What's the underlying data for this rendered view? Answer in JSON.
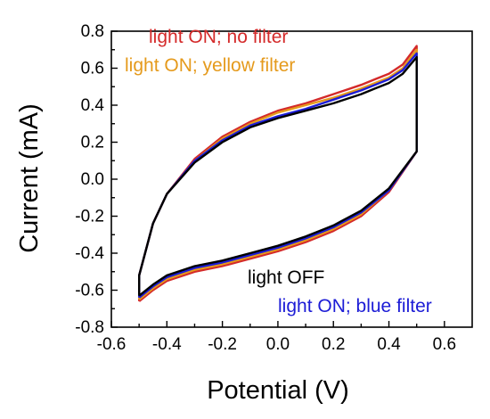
{
  "chart_data": {
    "type": "line",
    "title": "",
    "xlabel": "Potential (V)",
    "ylabel": "Current (mA)",
    "xlim": [
      -0.6,
      0.7
    ],
    "ylim": [
      -0.8,
      0.8
    ],
    "x_ticks": [
      "-0.6",
      "-0.4",
      "-0.2",
      "0.0",
      "0.2",
      "0.4",
      "0.6"
    ],
    "y_ticks": [
      "-0.8",
      "-0.6",
      "-0.4",
      "-0.2",
      "0.0",
      "0.2",
      "0.4",
      "0.6",
      "0.8"
    ],
    "grid": false,
    "series": [
      {
        "name": "light ON; no filter",
        "color": "#d42a2a",
        "x": [
          -0.5,
          -0.45,
          -0.4,
          -0.3,
          -0.2,
          -0.1,
          0.0,
          0.1,
          0.2,
          0.3,
          0.4,
          0.5,
          0.5,
          0.45,
          0.4,
          0.35,
          0.3,
          0.2,
          0.1,
          0.0,
          -0.1,
          -0.2,
          -0.3,
          -0.4,
          -0.45,
          -0.5,
          -0.5
        ],
        "y": [
          -0.66,
          -0.6,
          -0.55,
          -0.5,
          -0.47,
          -0.43,
          -0.39,
          -0.34,
          -0.28,
          -0.2,
          -0.07,
          0.15,
          0.72,
          0.62,
          0.57,
          0.54,
          0.51,
          0.46,
          0.41,
          0.37,
          0.31,
          0.23,
          0.11,
          -0.08,
          -0.24,
          -0.52,
          -0.66
        ]
      },
      {
        "name": "light ON; yellow filter",
        "color": "#e59a1c",
        "x": [
          -0.5,
          -0.45,
          -0.4,
          -0.3,
          -0.2,
          -0.1,
          0.0,
          0.1,
          0.2,
          0.3,
          0.4,
          0.5,
          0.5,
          0.45,
          0.4,
          0.35,
          0.3,
          0.2,
          0.1,
          0.0,
          -0.1,
          -0.2,
          -0.3,
          -0.4,
          -0.45,
          -0.5,
          -0.5
        ],
        "y": [
          -0.65,
          -0.59,
          -0.54,
          -0.49,
          -0.46,
          -0.42,
          -0.38,
          -0.33,
          -0.27,
          -0.19,
          -0.06,
          0.15,
          0.7,
          0.6,
          0.55,
          0.52,
          0.49,
          0.44,
          0.4,
          0.36,
          0.3,
          0.22,
          0.1,
          -0.08,
          -0.24,
          -0.52,
          -0.65
        ]
      },
      {
        "name": "light ON; blue filter",
        "color": "#1c1cd6",
        "x": [
          -0.5,
          -0.45,
          -0.4,
          -0.3,
          -0.2,
          -0.1,
          0.0,
          0.1,
          0.2,
          0.3,
          0.4,
          0.5,
          0.5,
          0.45,
          0.4,
          0.35,
          0.3,
          0.2,
          0.1,
          0.0,
          -0.1,
          -0.2,
          -0.3,
          -0.4,
          -0.45,
          -0.5,
          -0.5
        ],
        "y": [
          -0.64,
          -0.58,
          -0.53,
          -0.48,
          -0.45,
          -0.41,
          -0.37,
          -0.32,
          -0.26,
          -0.18,
          -0.06,
          0.15,
          0.68,
          0.59,
          0.54,
          0.51,
          0.48,
          0.43,
          0.38,
          0.34,
          0.29,
          0.21,
          0.1,
          -0.08,
          -0.24,
          -0.52,
          -0.64
        ]
      },
      {
        "name": "light OFF",
        "color": "#000000",
        "x": [
          -0.5,
          -0.45,
          -0.4,
          -0.3,
          -0.2,
          -0.1,
          0.0,
          0.1,
          0.2,
          0.3,
          0.4,
          0.5,
          0.5,
          0.45,
          0.4,
          0.35,
          0.3,
          0.2,
          0.1,
          0.0,
          -0.1,
          -0.2,
          -0.3,
          -0.4,
          -0.45,
          -0.5,
          -0.5
        ],
        "y": [
          -0.63,
          -0.57,
          -0.52,
          -0.47,
          -0.44,
          -0.4,
          -0.36,
          -0.31,
          -0.25,
          -0.17,
          -0.05,
          0.15,
          0.66,
          0.57,
          0.52,
          0.49,
          0.46,
          0.41,
          0.37,
          0.33,
          0.28,
          0.2,
          0.09,
          -0.08,
          -0.24,
          -0.52,
          -0.63
        ]
      }
    ],
    "annotations": [
      {
        "text": "light ON; no filter",
        "color": "#d42a2a"
      },
      {
        "text": "light ON; yellow filter",
        "color": "#e59a1c"
      },
      {
        "text": "light OFF",
        "color": "#000000"
      },
      {
        "text": "light ON; blue filter",
        "color": "#1c1cd6"
      }
    ]
  }
}
